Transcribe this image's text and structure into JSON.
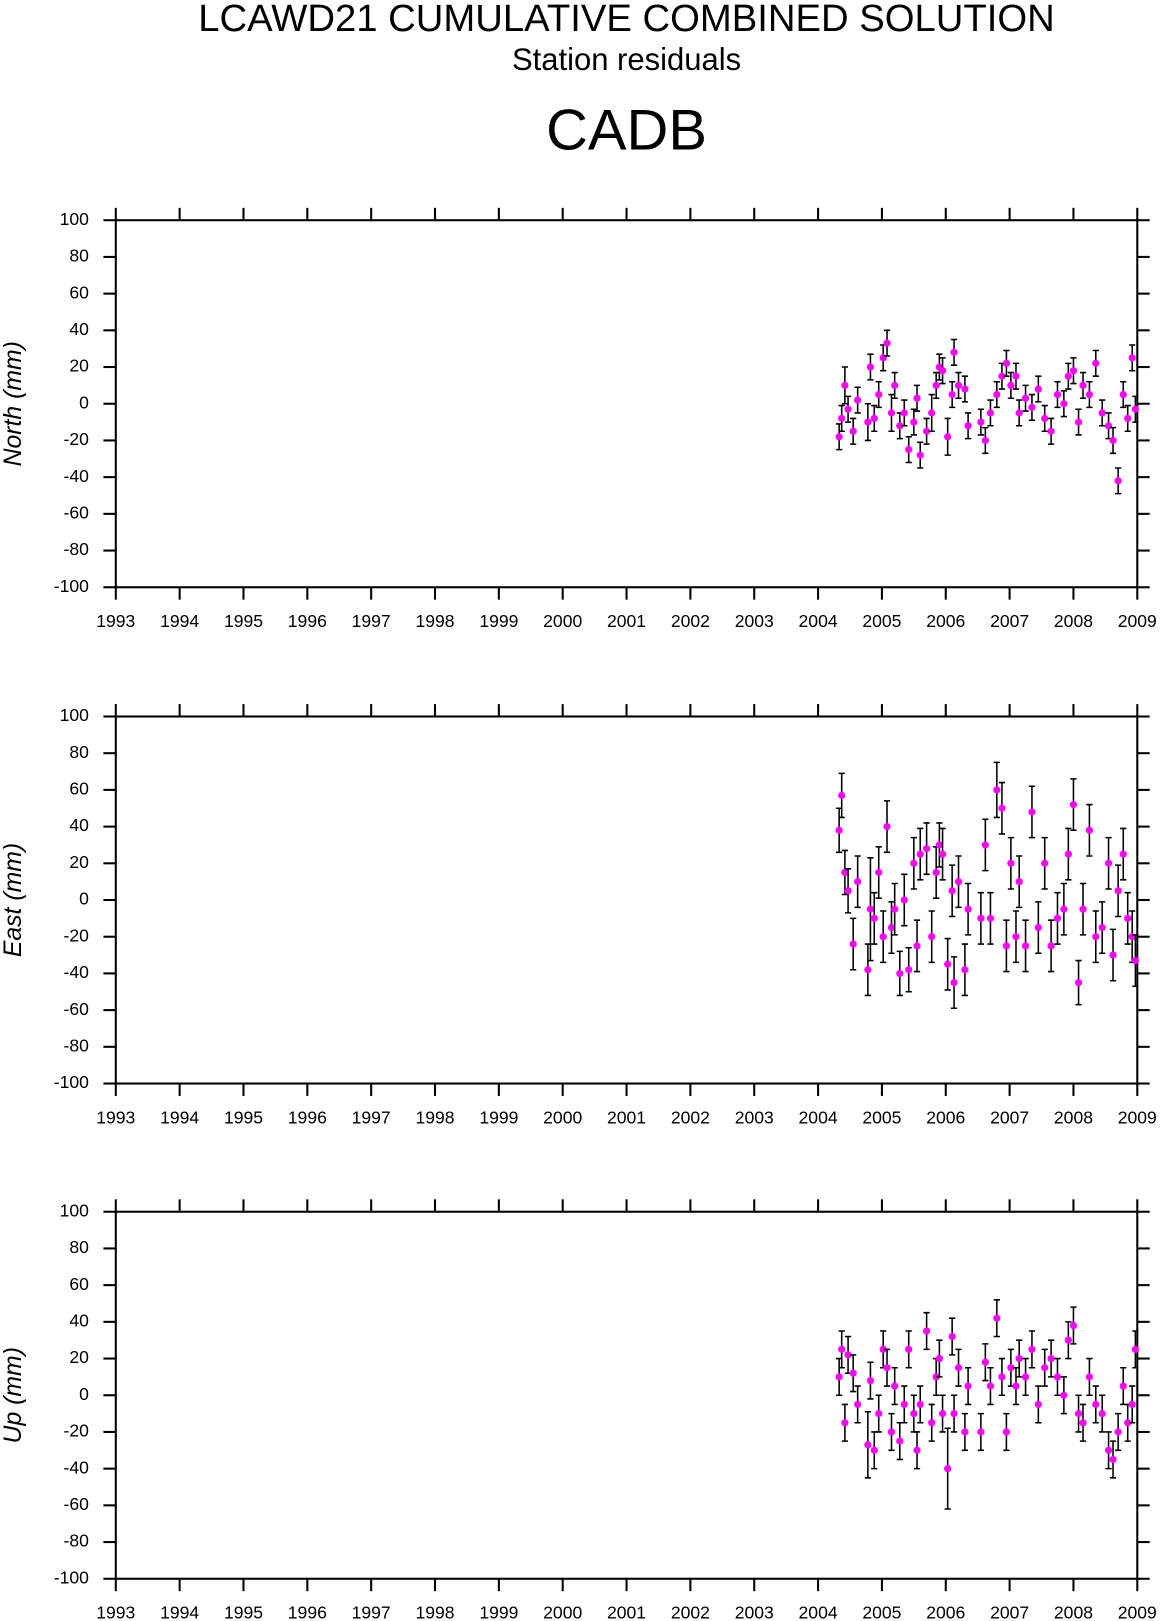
{
  "title": "LCAWD21 CUMULATIVE COMBINED SOLUTION",
  "subtitle": "Station residuals",
  "station": "CADB",
  "chart_data": [
    {
      "type": "scatter",
      "ylabel": "North (mm)",
      "color": "#ff00ff",
      "x": [
        2004.33,
        2004.37,
        2004.42,
        2004.47,
        2004.55,
        2004.62,
        2004.78,
        2004.82,
        2004.88,
        2004.95,
        2005.02,
        2005.08,
        2005.15,
        2005.2,
        2005.28,
        2005.35,
        2005.42,
        2005.5,
        2005.55,
        2005.6,
        2005.7,
        2005.78,
        2005.85,
        2005.9,
        2005.95,
        2006.03,
        2006.1,
        2006.13,
        2006.2,
        2006.3,
        2006.35,
        2006.55,
        2006.62,
        2006.7,
        2006.8,
        2006.88,
        2006.95,
        2007.02,
        2007.1,
        2007.15,
        2007.25,
        2007.35,
        2007.45,
        2007.55,
        2007.65,
        2007.75,
        2007.85,
        2007.92,
        2008.0,
        2008.08,
        2008.15,
        2008.25,
        2008.35,
        2008.45,
        2008.55,
        2008.62,
        2008.7,
        2008.78,
        2008.85,
        2008.92,
        2008.97
      ],
      "values": [
        -18,
        -8,
        10,
        -3,
        -15,
        2,
        -10,
        20,
        -8,
        5,
        25,
        33,
        -5,
        10,
        -12,
        -5,
        -25,
        -10,
        3,
        -28,
        -15,
        -5,
        10,
        20,
        18,
        -18,
        5,
        28,
        10,
        8,
        -12,
        -10,
        -20,
        -5,
        5,
        15,
        22,
        10,
        15,
        -5,
        3,
        -2,
        8,
        -8,
        -15,
        5,
        0,
        15,
        18,
        -10,
        10,
        5,
        22,
        -5,
        -12,
        -20,
        -42,
        5,
        -8,
        25,
        -3
      ],
      "errors": [
        7,
        7,
        10,
        7,
        7,
        7,
        10,
        7,
        7,
        7,
        7,
        7,
        10,
        7,
        7,
        7,
        7,
        7,
        7,
        7,
        7,
        10,
        7,
        7,
        7,
        10,
        7,
        7,
        7,
        7,
        7,
        7,
        7,
        7,
        7,
        7,
        7,
        7,
        7,
        7,
        7,
        7,
        7,
        7,
        7,
        7,
        7,
        7,
        7,
        7,
        7,
        7,
        7,
        7,
        7,
        7,
        7,
        7,
        7,
        7,
        7
      ],
      "xlim": [
        1993,
        2009
      ],
      "ylim": [
        -100,
        100
      ],
      "xticks": [
        1993,
        1994,
        1995,
        1996,
        1997,
        1998,
        1999,
        2000,
        2001,
        2002,
        2003,
        2004,
        2005,
        2006,
        2007,
        2008,
        2009
      ],
      "yticks": [
        -100,
        -80,
        -60,
        -40,
        -20,
        0,
        20,
        40,
        60,
        80,
        100
      ]
    },
    {
      "type": "scatter",
      "ylabel": "East (mm)",
      "color": "#ff00ff",
      "x": [
        2004.33,
        2004.37,
        2004.42,
        2004.47,
        2004.55,
        2004.62,
        2004.78,
        2004.82,
        2004.88,
        2004.95,
        2005.02,
        2005.08,
        2005.15,
        2005.2,
        2005.28,
        2005.35,
        2005.42,
        2005.5,
        2005.55,
        2005.6,
        2005.7,
        2005.78,
        2005.85,
        2005.9,
        2005.95,
        2006.03,
        2006.1,
        2006.13,
        2006.2,
        2006.3,
        2006.35,
        2006.55,
        2006.62,
        2006.7,
        2006.8,
        2006.88,
        2006.95,
        2007.02,
        2007.1,
        2007.15,
        2007.25,
        2007.35,
        2007.45,
        2007.55,
        2007.65,
        2007.75,
        2007.85,
        2007.92,
        2008.0,
        2008.08,
        2008.15,
        2008.25,
        2008.35,
        2008.45,
        2008.55,
        2008.62,
        2008.7,
        2008.78,
        2008.85,
        2008.92,
        2008.97
      ],
      "values": [
        38,
        57,
        15,
        5,
        -24,
        10,
        -38,
        -5,
        -10,
        15,
        -20,
        40,
        -15,
        -5,
        -40,
        0,
        -38,
        20,
        -25,
        25,
        28,
        -20,
        15,
        30,
        25,
        -35,
        5,
        -45,
        10,
        -38,
        -5,
        -10,
        30,
        -10,
        60,
        50,
        -25,
        20,
        -20,
        10,
        -25,
        48,
        -15,
        20,
        -25,
        -10,
        -5,
        25,
        52,
        -45,
        -5,
        38,
        -20,
        -15,
        20,
        -30,
        5,
        25,
        -10,
        -20,
        -33
      ],
      "errors": [
        12,
        12,
        12,
        12,
        14,
        14,
        14,
        28,
        14,
        14,
        14,
        14,
        14,
        14,
        12,
        14,
        12,
        14,
        14,
        14,
        14,
        14,
        14,
        12,
        14,
        14,
        14,
        14,
        14,
        14,
        14,
        14,
        14,
        14,
        15,
        14,
        14,
        14,
        14,
        14,
        14,
        14,
        14,
        14,
        14,
        14,
        14,
        14,
        14,
        12,
        14,
        14,
        14,
        14,
        14,
        14,
        14,
        14,
        14,
        14,
        14
      ],
      "xlim": [
        1993,
        2009
      ],
      "ylim": [
        -100,
        100
      ],
      "xticks": [
        1993,
        1994,
        1995,
        1996,
        1997,
        1998,
        1999,
        2000,
        2001,
        2002,
        2003,
        2004,
        2005,
        2006,
        2007,
        2008,
        2009
      ],
      "yticks": [
        -100,
        -80,
        -60,
        -40,
        -20,
        0,
        20,
        40,
        60,
        80,
        100
      ]
    },
    {
      "type": "scatter",
      "ylabel": "Up (mm)",
      "color": "#ff00ff",
      "x": [
        2004.33,
        2004.37,
        2004.42,
        2004.47,
        2004.55,
        2004.62,
        2004.78,
        2004.82,
        2004.88,
        2004.95,
        2005.02,
        2005.08,
        2005.15,
        2005.2,
        2005.28,
        2005.35,
        2005.42,
        2005.5,
        2005.55,
        2005.6,
        2005.7,
        2005.78,
        2005.85,
        2005.9,
        2005.95,
        2006.03,
        2006.1,
        2006.13,
        2006.2,
        2006.3,
        2006.35,
        2006.55,
        2006.62,
        2006.7,
        2006.8,
        2006.88,
        2006.95,
        2007.02,
        2007.1,
        2007.15,
        2007.25,
        2007.35,
        2007.45,
        2007.55,
        2007.65,
        2007.75,
        2007.85,
        2007.92,
        2008.0,
        2008.08,
        2008.15,
        2008.25,
        2008.35,
        2008.45,
        2008.55,
        2008.62,
        2008.7,
        2008.78,
        2008.85,
        2008.92,
        2008.97
      ],
      "values": [
        10,
        25,
        -15,
        22,
        12,
        -5,
        -27,
        8,
        -30,
        -10,
        25,
        15,
        -20,
        5,
        -25,
        -5,
        25,
        -10,
        -30,
        -5,
        35,
        -15,
        10,
        20,
        -10,
        -40,
        32,
        -10,
        15,
        -20,
        5,
        -20,
        18,
        5,
        42,
        10,
        -20,
        15,
        5,
        20,
        10,
        25,
        -5,
        15,
        20,
        10,
        0,
        30,
        38,
        -10,
        -15,
        10,
        -5,
        -10,
        -30,
        -35,
        -20,
        5,
        -15,
        -5,
        25
      ],
      "errors": [
        10,
        10,
        10,
        10,
        10,
        10,
        18,
        10,
        10,
        10,
        10,
        10,
        10,
        10,
        10,
        10,
        10,
        10,
        10,
        10,
        10,
        10,
        10,
        10,
        10,
        22,
        10,
        10,
        10,
        10,
        10,
        10,
        10,
        10,
        10,
        10,
        10,
        10,
        10,
        10,
        10,
        10,
        10,
        10,
        10,
        10,
        10,
        10,
        10,
        10,
        10,
        10,
        10,
        10,
        10,
        10,
        10,
        10,
        10,
        10,
        10
      ],
      "xlim": [
        1993,
        2009
      ],
      "ylim": [
        -100,
        100
      ],
      "xticks": [
        1993,
        1994,
        1995,
        1996,
        1997,
        1998,
        1999,
        2000,
        2001,
        2002,
        2003,
        2004,
        2005,
        2006,
        2007,
        2008,
        2009
      ],
      "yticks": [
        -100,
        -80,
        -60,
        -40,
        -20,
        0,
        20,
        40,
        60,
        80,
        100
      ]
    }
  ]
}
